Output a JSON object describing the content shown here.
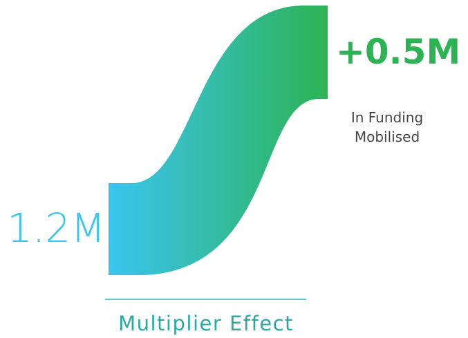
{
  "start_value": "1.2M",
  "added_value": "+0.5M",
  "added_caption": [
    "In Funding",
    "Mobilised"
  ],
  "footer": "Multiplier Effect"
}
